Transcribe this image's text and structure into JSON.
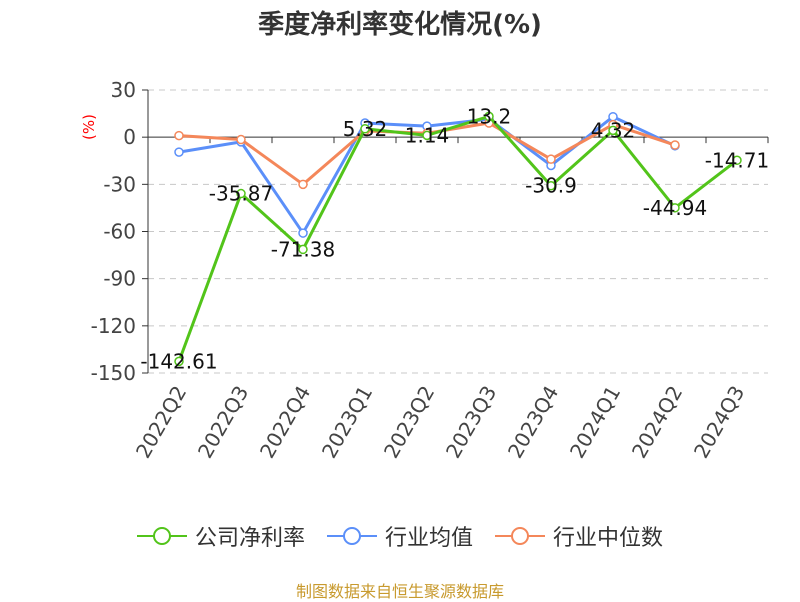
{
  "title": "季度净利率变化情况(%)",
  "source": "制图数据来自恒生聚源数据库",
  "chart_data": {
    "type": "line",
    "title": "季度净利率变化情况(%)",
    "ylabel": "(%)",
    "xlabel": "",
    "categories": [
      "2022Q2",
      "2022Q3",
      "2022Q4",
      "2023Q1",
      "2023Q2",
      "2023Q3",
      "2023Q4",
      "2024Q1",
      "2024Q2",
      "2024Q3"
    ],
    "ylim": [
      -150,
      30
    ],
    "yticks": [
      30,
      0,
      -30,
      -60,
      -90,
      -120,
      -150
    ],
    "grid": true,
    "legend_position": "bottom",
    "series": [
      {
        "name": "公司净利率",
        "color": "#52c41a",
        "values": [
          -142.61,
          -35.87,
          -71.38,
          5.32,
          1.14,
          13.2,
          -30.9,
          4.32,
          -44.94,
          -14.71
        ],
        "labels": [
          "-142.61",
          "-35.87",
          "-71.38",
          "5.32",
          "1.14",
          "13.2",
          "-30.9",
          "4.32",
          "-44.94",
          "-14.71"
        ]
      },
      {
        "name": "行业均值",
        "color": "#5b8ff9",
        "values": [
          -9.5,
          -3,
          -61,
          9,
          7,
          11.5,
          -18,
          13,
          -5.5,
          null
        ]
      },
      {
        "name": "行业中位数",
        "color": "#f4875a",
        "values": [
          1,
          -1.5,
          -30,
          4,
          2.5,
          9,
          -14,
          8,
          -5,
          null
        ]
      }
    ]
  }
}
